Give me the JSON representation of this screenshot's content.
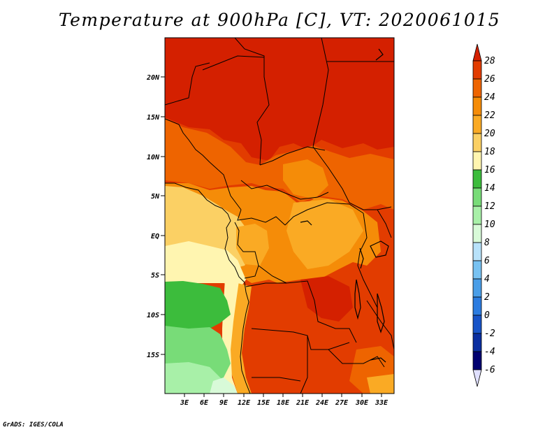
{
  "title": "Temperature at 900hPa [C], VT: 2020061015",
  "credit": "GrADS: IGES/COLA",
  "map": {
    "lon_range": [
      0,
      35
    ],
    "lat_range": [
      -20,
      25
    ],
    "lat_ticks": [
      "20N",
      "15N",
      "10N",
      "5N",
      "EQ",
      "5S",
      "10S",
      "15S"
    ],
    "lon_ticks": [
      "3E",
      "6E",
      "9E",
      "12E",
      "15E",
      "18E",
      "21E",
      "24E",
      "27E",
      "30E",
      "33E"
    ]
  },
  "colorbar": {
    "labels": [
      "28",
      "26",
      "24",
      "22",
      "20",
      "18",
      "16",
      "14",
      "12",
      "10",
      "8",
      "6",
      "4",
      "2",
      "0",
      "-2",
      "-4",
      "-6"
    ],
    "colors": [
      "#d42000",
      "#e23c00",
      "#ee6400",
      "#f58c08",
      "#faaa24",
      "#fbd064",
      "#fff5b0",
      "#3cbc3c",
      "#78dc78",
      "#a8f0a8",
      "#d8fad8",
      "#b8e2fa",
      "#78c2f2",
      "#4a9ee8",
      "#2c7ce0",
      "#1854c8",
      "#0a2ea0",
      "#000070",
      "#e0e0ff"
    ]
  }
}
